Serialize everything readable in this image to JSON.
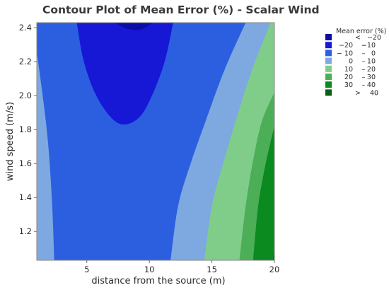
{
  "chart_data": {
    "type": "contour",
    "title": "Contour Plot of Mean Error (%) - Scalar Wind",
    "xlabel": "distance from the source (m)",
    "ylabel": "wind speed (m/s)",
    "xlim": [
      1,
      20
    ],
    "ylim": [
      1.03,
      2.43
    ],
    "x_ticks": [
      5,
      10,
      15,
      20
    ],
    "y_ticks": [
      1.2,
      1.4,
      1.6,
      1.8,
      2.0,
      2.2,
      2.4
    ],
    "x_tick_labels": [
      "5",
      "10",
      "15",
      "20"
    ],
    "y_tick_labels": [
      "1.2",
      "1.4",
      "1.6",
      "1.8",
      "2.0",
      "2.2",
      "2.4"
    ],
    "grid": false,
    "legend_position": "top-right",
    "legend": {
      "title": "Mean error (%)",
      "entries": [
        {
          "parts": [
            "<",
            "−20"
          ],
          "color": "#0c0ca6"
        },
        {
          "parts": [
            "−20",
            "–",
            "−10"
          ],
          "color": "#1717d6"
        },
        {
          "parts": [
            "− 10",
            "–",
            "0"
          ],
          "color": "#2b5fe0"
        },
        {
          "parts": [
            "0",
            "–",
            "10"
          ],
          "color": "#7ea8e0"
        },
        {
          "parts": [
            "10",
            "–",
            "20"
          ],
          "color": "#80cd8a"
        },
        {
          "parts": [
            "20",
            "–",
            "30"
          ],
          "color": "#4caf58"
        },
        {
          "parts": [
            "30",
            "–",
            "40"
          ],
          "color": "#0a8a1f"
        },
        {
          "parts": [
            ">",
            "40"
          ],
          "color": "#0a5f12"
        }
      ]
    },
    "regions": [
      {
        "level": "<-20",
        "color": "#0c0ca6",
        "boundary": [
          [
            7.2,
            2.43
          ],
          [
            8.2,
            2.395
          ],
          [
            9.3,
            2.39
          ],
          [
            10.3,
            2.43
          ]
        ]
      },
      {
        "level": "-20 to -10",
        "color": "#1717d6",
        "boundary": [
          [
            4.2,
            2.43
          ],
          [
            4.7,
            2.22
          ],
          [
            5.5,
            2.04
          ],
          [
            6.5,
            1.91
          ],
          [
            7.5,
            1.838
          ],
          [
            8.5,
            1.838
          ],
          [
            9.5,
            1.9
          ],
          [
            10.5,
            2.05
          ],
          [
            11.3,
            2.22
          ],
          [
            11.9,
            2.43
          ]
        ]
      },
      {
        "level": "-10 to 0",
        "color": "#2b5fe0",
        "left_boundary": [
          [
            1.0,
            2.26
          ],
          [
            1.8,
            1.8
          ],
          [
            2.2,
            1.4
          ],
          [
            2.4,
            1.03
          ]
        ],
        "right_boundary": [
          [
            17.7,
            2.43
          ],
          [
            16.0,
            2.15
          ],
          [
            14.5,
            1.85
          ],
          [
            13.3,
            1.6
          ],
          [
            12.3,
            1.35
          ],
          [
            11.7,
            1.03
          ]
        ]
      },
      {
        "level": "0 to 10",
        "color": "#7ea8e0",
        "right_boundary": [
          [
            19.7,
            2.43
          ],
          [
            18.2,
            2.15
          ],
          [
            16.9,
            1.85
          ],
          [
            15.9,
            1.6
          ],
          [
            15.0,
            1.35
          ],
          [
            14.4,
            1.03
          ]
        ]
      },
      {
        "level": "10 to 20",
        "color": "#80cd8a",
        "right_boundary": [
          [
            20.0,
            2.02
          ],
          [
            19.0,
            1.85
          ],
          [
            18.3,
            1.62
          ],
          [
            17.7,
            1.35
          ],
          [
            17.2,
            1.03
          ]
        ]
      },
      {
        "level": "20 to 30",
        "color": "#4caf58",
        "right_boundary": [
          [
            20.0,
            1.82
          ],
          [
            19.3,
            1.6
          ],
          [
            18.7,
            1.35
          ],
          [
            18.3,
            1.03
          ]
        ]
      },
      {
        "level": "30 to 40",
        "color": "#0a8a1f",
        "right_boundary": [
          [
            20.0,
            1.1
          ],
          [
            19.9,
            1.03
          ]
        ]
      }
    ]
  }
}
